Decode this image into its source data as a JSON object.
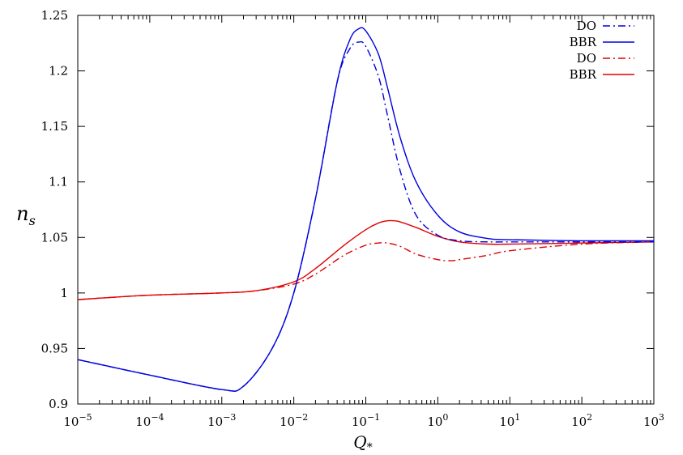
{
  "chart_data": {
    "type": "line",
    "xlabel": "Q",
    "xlabel_sub": "*",
    "ylabel": "n",
    "ylabel_sub": "s",
    "xscale": "log",
    "xlim": [
      1e-05,
      1000
    ],
    "ylim": [
      0.9,
      1.25
    ],
    "grid": false,
    "legend_position": "top-right",
    "x_ticks": [
      {
        "value": 1e-05,
        "base": "10",
        "exp": "−5"
      },
      {
        "value": 0.0001,
        "base": "10",
        "exp": "−4"
      },
      {
        "value": 0.001,
        "base": "10",
        "exp": "−3"
      },
      {
        "value": 0.01,
        "base": "10",
        "exp": "−2"
      },
      {
        "value": 0.1,
        "base": "10",
        "exp": "−1"
      },
      {
        "value": 1,
        "base": "10",
        "exp": "0"
      },
      {
        "value": 10,
        "base": "10",
        "exp": "1"
      },
      {
        "value": 100,
        "base": "10",
        "exp": "2"
      },
      {
        "value": 1000,
        "base": "10",
        "exp": "3"
      }
    ],
    "y_ticks": [
      {
        "value": 0.9,
        "label": "0.9"
      },
      {
        "value": 0.95,
        "label": "0.95"
      },
      {
        "value": 1.0,
        "label": "1"
      },
      {
        "value": 1.05,
        "label": "1.05"
      },
      {
        "value": 1.1,
        "label": "1.1"
      },
      {
        "value": 1.15,
        "label": "1.15"
      },
      {
        "value": 1.2,
        "label": "1.2"
      },
      {
        "value": 1.25,
        "label": "1.25"
      }
    ],
    "series": [
      {
        "name": "DO",
        "color": "#0000e0",
        "dash": "dashdot",
        "x": [
          1e-05,
          0.0001,
          0.001,
          0.002,
          0.005,
          0.01,
          0.02,
          0.04,
          0.06,
          0.08,
          0.1,
          0.15,
          0.2,
          0.3,
          0.5,
          1,
          2,
          5,
          10,
          100,
          1000
        ],
        "y": [
          0.94,
          0.926,
          0.913,
          0.916,
          0.95,
          1.0,
          1.085,
          1.19,
          1.22,
          1.226,
          1.222,
          1.195,
          1.16,
          1.11,
          1.07,
          1.052,
          1.047,
          1.046,
          1.046,
          1.046,
          1.046
        ]
      },
      {
        "name": "BBR",
        "color": "#0000e0",
        "dash": "solid",
        "x": [
          1e-05,
          0.0001,
          0.001,
          0.002,
          0.005,
          0.01,
          0.02,
          0.04,
          0.06,
          0.08,
          0.1,
          0.15,
          0.2,
          0.3,
          0.5,
          1,
          2,
          5,
          10,
          100,
          1000
        ],
        "y": [
          0.94,
          0.926,
          0.913,
          0.916,
          0.95,
          1.0,
          1.085,
          1.19,
          1.228,
          1.238,
          1.236,
          1.215,
          1.185,
          1.14,
          1.1,
          1.07,
          1.055,
          1.049,
          1.048,
          1.047,
          1.047
        ]
      },
      {
        "name": "DO",
        "color": "#e00000",
        "dash": "dashdot",
        "x": [
          1e-05,
          0.0001,
          0.001,
          0.003,
          0.01,
          0.02,
          0.05,
          0.1,
          0.15,
          0.2,
          0.3,
          0.5,
          1,
          1.5,
          2,
          5,
          10,
          100,
          1000
        ],
        "y": [
          0.994,
          0.998,
          1.0,
          1.002,
          1.008,
          1.017,
          1.034,
          1.043,
          1.045,
          1.045,
          1.042,
          1.035,
          1.03,
          1.029,
          1.03,
          1.034,
          1.038,
          1.044,
          1.046
        ]
      },
      {
        "name": "BBR",
        "color": "#e00000",
        "dash": "solid",
        "x": [
          1e-05,
          0.0001,
          0.001,
          0.003,
          0.01,
          0.02,
          0.05,
          0.1,
          0.15,
          0.2,
          0.25,
          0.3,
          0.5,
          1,
          2,
          5,
          10,
          100,
          1000
        ],
        "y": [
          0.994,
          0.998,
          1.0,
          1.002,
          1.01,
          1.022,
          1.043,
          1.057,
          1.063,
          1.065,
          1.065,
          1.064,
          1.059,
          1.051,
          1.046,
          1.044,
          1.044,
          1.045,
          1.046
        ]
      }
    ]
  }
}
